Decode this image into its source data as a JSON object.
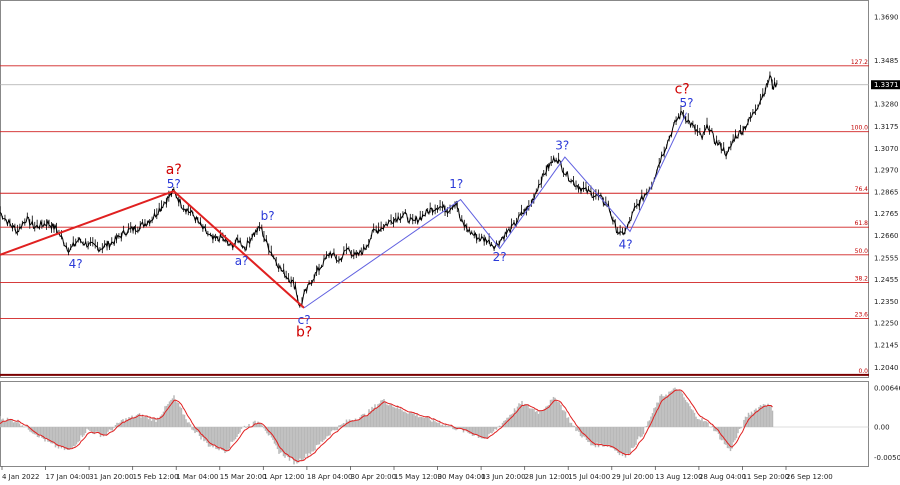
{
  "chart_data": [
    {
      "type": "line",
      "title": "",
      "ylim": [
        1.199,
        1.377
      ],
      "price_ticks": [
        "1.3690",
        "1.3485",
        "1.3280",
        "1.3175",
        "1.3070",
        "1.2970",
        "1.2865",
        "1.2765",
        "1.2660",
        "1.2555",
        "1.2455",
        "1.2350",
        "1.2250",
        "1.2145",
        "1.2040"
      ],
      "current_price": "1.3371",
      "x_ticks": [
        "4 Jan 2022",
        "17 Jan 04:00",
        "31 Jan 20:00",
        "15 Feb 12:00",
        "1 Mar 04:00",
        "15 Mar 20:00",
        "1 Apr 12:00",
        "18 Apr 04:00",
        "30 Apr 20:00",
        "15 May 12:00",
        "30 May 04:00",
        "13 Jun 20:00",
        "28 Jun 12:00",
        "15 Jul 04:00",
        "29 Jul 20:00",
        "13 Aug 12:00",
        "28 Aug 04:00",
        "11 Sep 20:00",
        "26 Sep 12:00"
      ],
      "fib_levels": [
        {
          "label": "127.2",
          "value": 1.346
        },
        {
          "label": "100.0",
          "value": 1.315
        },
        {
          "label": "76.4",
          "value": 1.286
        },
        {
          "label": "61.8",
          "value": 1.27
        },
        {
          "label": "50.0",
          "value": 1.257
        },
        {
          "label": "38.2",
          "value": 1.244
        },
        {
          "label": "23.6",
          "value": 1.227
        },
        {
          "label": "0.0",
          "value": 1.2005
        }
      ],
      "price_path": [
        [
          0.0,
          1.277
        ],
        [
          0.01,
          1.272
        ],
        [
          0.02,
          1.268
        ],
        [
          0.03,
          1.274
        ],
        [
          0.04,
          1.27
        ],
        [
          0.055,
          1.272
        ],
        [
          0.065,
          1.269
        ],
        [
          0.075,
          1.262
        ],
        [
          0.08,
          1.259
        ],
        [
          0.09,
          1.264
        ],
        [
          0.1,
          1.262
        ],
        [
          0.115,
          1.26
        ],
        [
          0.13,
          1.263
        ],
        [
          0.145,
          1.268
        ],
        [
          0.16,
          1.27
        ],
        [
          0.175,
          1.274
        ],
        [
          0.19,
          1.282
        ],
        [
          0.2,
          1.287
        ],
        [
          0.21,
          1.28
        ],
        [
          0.222,
          1.276
        ],
        [
          0.232,
          1.27
        ],
        [
          0.245,
          1.264
        ],
        [
          0.255,
          1.265
        ],
        [
          0.265,
          1.261
        ],
        [
          0.275,
          1.264
        ],
        [
          0.282,
          1.26
        ],
        [
          0.29,
          1.266
        ],
        [
          0.3,
          1.27
        ],
        [
          0.305,
          1.264
        ],
        [
          0.315,
          1.256
        ],
        [
          0.325,
          1.249
        ],
        [
          0.335,
          1.245
        ],
        [
          0.34,
          1.242
        ],
        [
          0.345,
          1.232
        ],
        [
          0.35,
          1.238
        ],
        [
          0.36,
          1.246
        ],
        [
          0.37,
          1.252
        ],
        [
          0.38,
          1.258
        ],
        [
          0.39,
          1.254
        ],
        [
          0.4,
          1.26
        ],
        [
          0.41,
          1.256
        ],
        [
          0.42,
          1.26
        ],
        [
          0.43,
          1.268
        ],
        [
          0.44,
          1.27
        ],
        [
          0.45,
          1.273
        ],
        [
          0.465,
          1.276
        ],
        [
          0.475,
          1.272
        ],
        [
          0.485,
          1.275
        ],
        [
          0.495,
          1.278
        ],
        [
          0.505,
          1.28
        ],
        [
          0.515,
          1.278
        ],
        [
          0.525,
          1.282
        ],
        [
          0.53,
          1.273
        ],
        [
          0.54,
          1.268
        ],
        [
          0.55,
          1.265
        ],
        [
          0.56,
          1.264
        ],
        [
          0.57,
          1.261
        ],
        [
          0.58,
          1.266
        ],
        [
          0.59,
          1.27
        ],
        [
          0.6,
          1.276
        ],
        [
          0.61,
          1.28
        ],
        [
          0.62,
          1.29
        ],
        [
          0.63,
          1.298
        ],
        [
          0.64,
          1.303
        ],
        [
          0.65,
          1.296
        ],
        [
          0.66,
          1.291
        ],
        [
          0.67,
          1.288
        ],
        [
          0.68,
          1.286
        ],
        [
          0.69,
          1.284
        ],
        [
          0.7,
          1.28
        ],
        [
          0.708,
          1.27
        ],
        [
          0.715,
          1.266
        ],
        [
          0.722,
          1.27
        ],
        [
          0.73,
          1.278
        ],
        [
          0.74,
          1.284
        ],
        [
          0.75,
          1.29
        ],
        [
          0.76,
          1.302
        ],
        [
          0.77,
          1.312
        ],
        [
          0.778,
          1.32
        ],
        [
          0.785,
          1.324
        ],
        [
          0.792,
          1.32
        ],
        [
          0.8,
          1.316
        ],
        [
          0.808,
          1.312
        ],
        [
          0.815,
          1.318
        ],
        [
          0.822,
          1.311
        ],
        [
          0.83,
          1.308
        ],
        [
          0.837,
          1.304
        ],
        [
          0.845,
          1.312
        ],
        [
          0.855,
          1.316
        ],
        [
          0.865,
          1.322
        ],
        [
          0.875,
          1.33
        ],
        [
          0.882,
          1.336
        ],
        [
          0.886,
          1.341
        ],
        [
          0.89,
          1.336
        ],
        [
          0.894,
          1.338
        ]
      ],
      "wave_lines": [
        {
          "color": "#e02020",
          "points": [
            [
              0.0,
              1.257
            ],
            [
              0.2,
              1.287
            ],
            [
              0.35,
              1.232
            ]
          ]
        },
        {
          "color": "#6060e0",
          "points": [
            [
              0.35,
              1.232
            ],
            [
              0.53,
              1.283
            ],
            [
              0.575,
              1.26
            ],
            [
              0.65,
              1.303
            ],
            [
              0.725,
              1.268
            ],
            [
              0.79,
              1.324
            ]
          ]
        }
      ],
      "wave_labels": [
        {
          "text": "a?",
          "color": "red",
          "x": 0.2,
          "y": 1.295,
          "size": "big"
        },
        {
          "text": "5?",
          "color": "blue",
          "x": 0.2,
          "y": 1.2885,
          "size": "small"
        },
        {
          "text": "b?",
          "color": "blue",
          "x": 0.308,
          "y": 1.2735,
          "size": "small"
        },
        {
          "text": "a?",
          "color": "blue",
          "x": 0.278,
          "y": 1.2522,
          "size": "small"
        },
        {
          "text": "4?",
          "color": "blue",
          "x": 0.087,
          "y": 1.2508,
          "size": "small"
        },
        {
          "text": "c?",
          "color": "blue",
          "x": 0.35,
          "y": 1.2245,
          "size": "small"
        },
        {
          "text": "b?",
          "color": "red",
          "x": 0.35,
          "y": 1.2185,
          "size": "big"
        },
        {
          "text": "1?",
          "color": "blue",
          "x": 0.525,
          "y": 1.2885,
          "size": "small"
        },
        {
          "text": "2?",
          "color": "blue",
          "x": 0.575,
          "y": 1.254,
          "size": "small"
        },
        {
          "text": "3?",
          "color": "blue",
          "x": 0.647,
          "y": 1.3065,
          "size": "small"
        },
        {
          "text": "4?",
          "color": "blue",
          "x": 0.72,
          "y": 1.26,
          "size": "small"
        },
        {
          "text": "c?",
          "color": "red",
          "x": 0.785,
          "y": 1.333,
          "size": "big"
        },
        {
          "text": "5?",
          "color": "blue",
          "x": 0.79,
          "y": 1.3265,
          "size": "small"
        }
      ]
    },
    {
      "type": "area",
      "title": "",
      "ylim": [
        -0.0065,
        0.0075
      ],
      "y_ticks": [
        "0.00646",
        "0.00",
        "-0.00506"
      ],
      "histogram": [
        [
          0.0,
          0.0015
        ],
        [
          0.02,
          0.001
        ],
        [
          0.04,
          -0.001
        ],
        [
          0.06,
          -0.003
        ],
        [
          0.08,
          -0.004
        ],
        [
          0.1,
          -0.0005
        ],
        [
          0.12,
          -0.0015
        ],
        [
          0.14,
          0.001
        ],
        [
          0.16,
          0.002
        ],
        [
          0.18,
          0.0012
        ],
        [
          0.2,
          0.005
        ],
        [
          0.22,
          0.0
        ],
        [
          0.24,
          -0.003
        ],
        [
          0.26,
          -0.004
        ],
        [
          0.28,
          0.0
        ],
        [
          0.3,
          0.001
        ],
        [
          0.32,
          -0.004
        ],
        [
          0.34,
          -0.006
        ],
        [
          0.36,
          -0.004
        ],
        [
          0.38,
          -0.001
        ],
        [
          0.4,
          0.001
        ],
        [
          0.42,
          0.002
        ],
        [
          0.44,
          0.0045
        ],
        [
          0.46,
          0.003
        ],
        [
          0.48,
          0.002
        ],
        [
          0.5,
          0.001
        ],
        [
          0.52,
          0.0
        ],
        [
          0.54,
          -0.001
        ],
        [
          0.56,
          -0.002
        ],
        [
          0.58,
          0.001
        ],
        [
          0.6,
          0.004
        ],
        [
          0.62,
          0.0025
        ],
        [
          0.64,
          0.005
        ],
        [
          0.66,
          0.0
        ],
        [
          0.68,
          -0.003
        ],
        [
          0.7,
          -0.003
        ],
        [
          0.72,
          -0.005
        ],
        [
          0.74,
          -0.001
        ],
        [
          0.76,
          0.005
        ],
        [
          0.78,
          0.0065
        ],
        [
          0.8,
          0.002
        ],
        [
          0.82,
          0.0
        ],
        [
          0.84,
          -0.004
        ],
        [
          0.86,
          0.002
        ],
        [
          0.88,
          0.004
        ],
        [
          0.89,
          0.003
        ]
      ]
    }
  ]
}
